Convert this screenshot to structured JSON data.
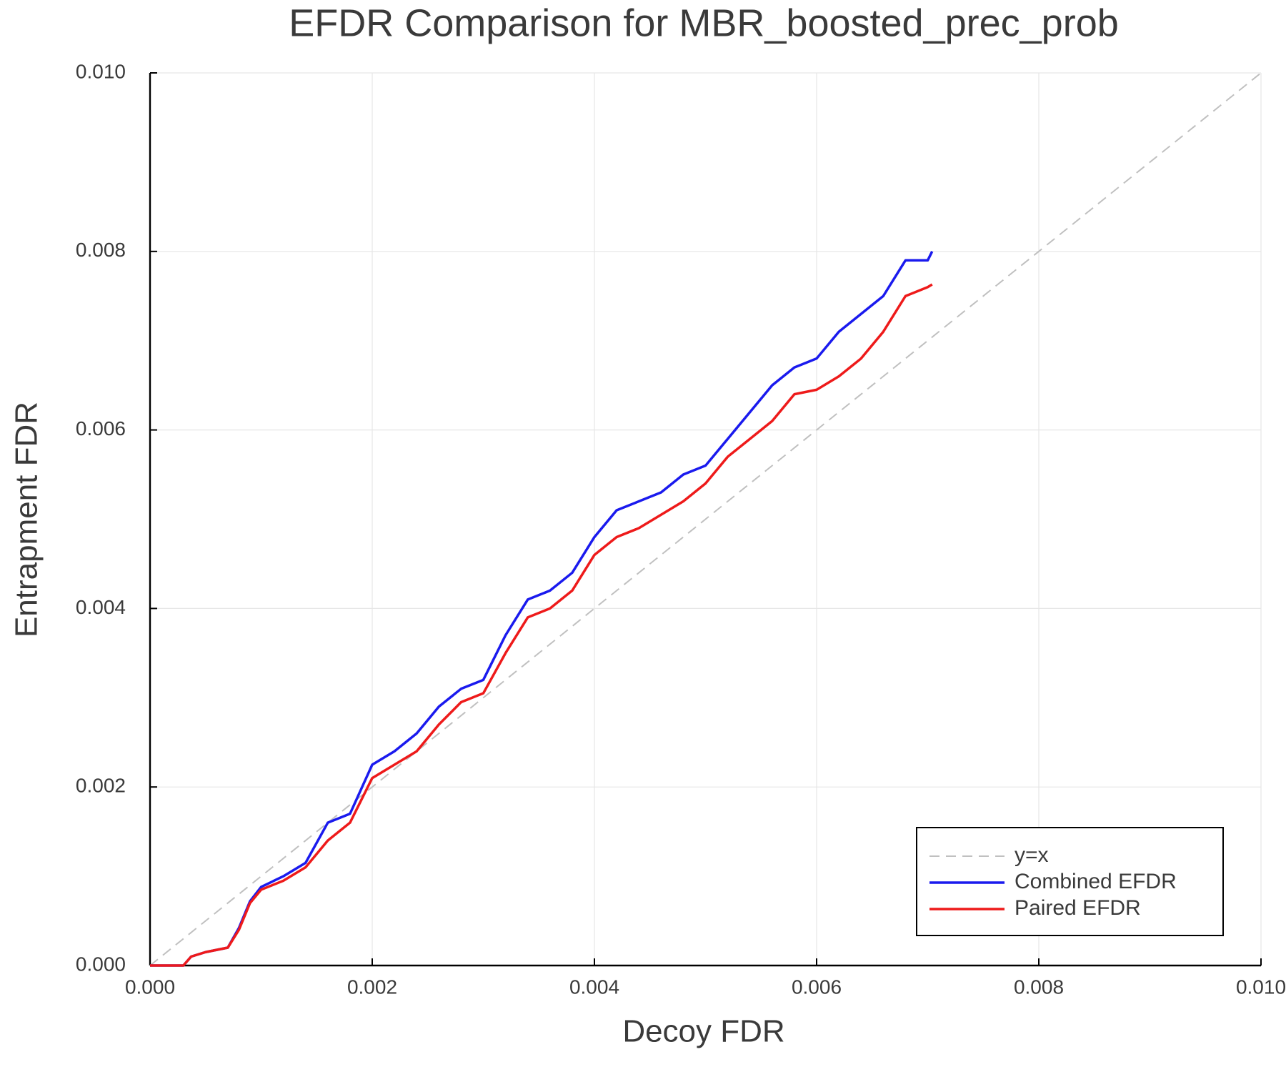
{
  "chart_data": {
    "type": "line",
    "title": "EFDR Comparison for MBR_boosted_prec_prob",
    "xlabel": "Decoy FDR",
    "ylabel": "Entrapment FDR",
    "xlim": [
      0,
      0.01
    ],
    "ylim": [
      0,
      0.01
    ],
    "xticks": [
      {
        "value": 0,
        "label": "0.000"
      },
      0.002,
      0.004,
      0.006,
      0.008,
      {
        "value": 0.01,
        "label": "0.010"
      }
    ],
    "yticks": [
      {
        "value": 0,
        "label": "0.000"
      },
      0.002,
      0.004,
      0.006,
      0.008,
      {
        "value": 0.01,
        "label": "0.010"
      }
    ],
    "grid": true,
    "legend": "lower right",
    "series": [
      {
        "name": "y=x",
        "color": "#c0c0c0",
        "style": "dashed",
        "x": [
          0,
          0.01
        ],
        "values": [
          0,
          0.01
        ]
      },
      {
        "name": "Combined EFDR",
        "color": "#1a1aee",
        "style": "solid",
        "x": [
          0,
          0.0003,
          0.00037,
          0.0005,
          0.0007,
          0.0008,
          0.0009,
          0.001,
          0.0012,
          0.0014,
          0.0016,
          0.0018,
          0.002,
          0.0022,
          0.0024,
          0.0026,
          0.0028,
          0.003,
          0.0032,
          0.0034,
          0.0036,
          0.0038,
          0.004,
          0.0042,
          0.0044,
          0.0046,
          0.0048,
          0.005,
          0.0052,
          0.0054,
          0.0056,
          0.0058,
          0.006,
          0.0062,
          0.0064,
          0.0066,
          0.0068,
          0.007,
          0.00704
        ],
        "values": [
          0,
          0,
          0.0001,
          0.00015,
          0.0002,
          0.00042,
          0.00072,
          0.00088,
          0.001,
          0.00115,
          0.0016,
          0.0017,
          0.00225,
          0.0024,
          0.0026,
          0.0029,
          0.0031,
          0.0032,
          0.0037,
          0.0041,
          0.0042,
          0.0044,
          0.0048,
          0.0051,
          0.0052,
          0.0053,
          0.0055,
          0.0056,
          0.0059,
          0.0062,
          0.0065,
          0.0067,
          0.0068,
          0.0071,
          0.0073,
          0.0075,
          0.0079,
          0.0079,
          0.008
        ]
      },
      {
        "name": "Paired EFDR",
        "color": "#ee1a1a",
        "style": "solid",
        "x": [
          0,
          0.0003,
          0.00037,
          0.0005,
          0.0007,
          0.0008,
          0.0009,
          0.001,
          0.0012,
          0.0014,
          0.0016,
          0.0018,
          0.002,
          0.0022,
          0.0024,
          0.0026,
          0.0028,
          0.003,
          0.0032,
          0.0034,
          0.0036,
          0.0038,
          0.004,
          0.0042,
          0.0044,
          0.0046,
          0.0048,
          0.005,
          0.0052,
          0.0054,
          0.0056,
          0.0058,
          0.006,
          0.0062,
          0.0064,
          0.0066,
          0.0068,
          0.007,
          0.00704
        ],
        "values": [
          0,
          0,
          0.0001,
          0.00015,
          0.0002,
          0.0004,
          0.0007,
          0.00085,
          0.00095,
          0.0011,
          0.0014,
          0.0016,
          0.0021,
          0.00225,
          0.0024,
          0.0027,
          0.00295,
          0.00305,
          0.0035,
          0.0039,
          0.004,
          0.0042,
          0.0046,
          0.0048,
          0.0049,
          0.00505,
          0.0052,
          0.0054,
          0.0057,
          0.0059,
          0.0061,
          0.0064,
          0.00645,
          0.0066,
          0.0068,
          0.0071,
          0.0075,
          0.0076,
          0.00763
        ]
      }
    ]
  }
}
